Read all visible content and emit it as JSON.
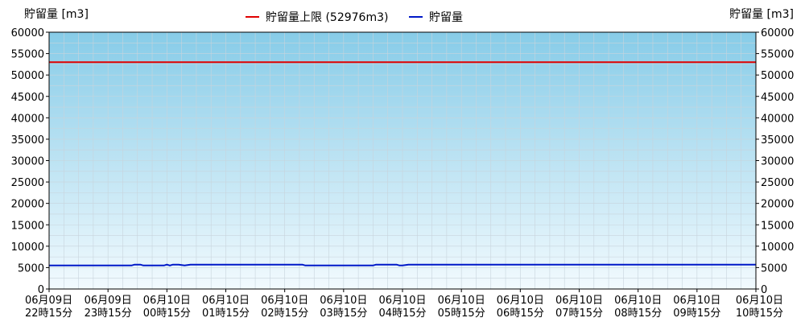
{
  "chart_data": {
    "type": "line",
    "ylabel_left": "貯留量 [m3]",
    "ylabel_right": "貯留量 [m3]",
    "ylim": [
      0,
      60000
    ],
    "yticks": [
      0,
      5000,
      10000,
      15000,
      20000,
      25000,
      30000,
      35000,
      40000,
      45000,
      50000,
      55000,
      60000
    ],
    "xtick_labels": [
      [
        "06月09日",
        "22時15分"
      ],
      [
        "06月09日",
        "23時15分"
      ],
      [
        "06月10日",
        "00時15分"
      ],
      [
        "06月10日",
        "01時15分"
      ],
      [
        "06月10日",
        "02時15分"
      ],
      [
        "06月10日",
        "03時15分"
      ],
      [
        "06月10日",
        "04時15分"
      ],
      [
        "06月10日",
        "05時15分"
      ],
      [
        "06月10日",
        "06時15分"
      ],
      [
        "06月10日",
        "07時15分"
      ],
      [
        "06月10日",
        "08時15分"
      ],
      [
        "06月10日",
        "09時15分"
      ],
      [
        "06月10日",
        "10時15分"
      ]
    ],
    "grid": true,
    "legend_position": "top-center",
    "series": [
      {
        "name": "貯留量上限 (52976m3)",
        "color": "#e00000",
        "x": [
          0,
          12
        ],
        "values": [
          52976,
          52976
        ]
      },
      {
        "name": "貯留量",
        "color": "#0018c8",
        "x": [
          0,
          1.4,
          1.45,
          1.55,
          1.6,
          1.95,
          2.0,
          2.05,
          2.1,
          2.2,
          2.3,
          2.4,
          2.5,
          3.0,
          4.0,
          4.3,
          4.35,
          5.0,
          5.5,
          5.55,
          5.9,
          5.95,
          6.0,
          6.1,
          6.2,
          6.5,
          7.0,
          8.0,
          9.0,
          10.0,
          11.0,
          12.0
        ],
        "values": [
          5500,
          5500,
          5700,
          5700,
          5500,
          5500,
          5700,
          5500,
          5700,
          5700,
          5500,
          5700,
          5700,
          5700,
          5700,
          5700,
          5500,
          5500,
          5500,
          5700,
          5700,
          5500,
          5500,
          5700,
          5700,
          5700,
          5700,
          5700,
          5700,
          5700,
          5700,
          5700
        ]
      }
    ]
  }
}
